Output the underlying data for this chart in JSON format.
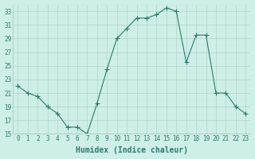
{
  "x": [
    0,
    1,
    2,
    3,
    4,
    5,
    6,
    7,
    8,
    9,
    10,
    11,
    12,
    13,
    14,
    15,
    16,
    17,
    18,
    19,
    20,
    21,
    22,
    23
  ],
  "y": [
    22,
    21,
    20.5,
    19,
    18,
    16,
    16,
    15,
    19.5,
    24.5,
    29,
    30.5,
    32,
    32,
    32.5,
    33.5,
    33,
    25.5,
    29.5,
    29.5,
    21,
    21,
    19,
    18
  ],
  "line_color": "#2d7a6e",
  "marker": "+",
  "bg_color": "#ceeee8",
  "grid_major_color": "#b0d4cc",
  "grid_minor_color": "#c5e8e2",
  "xlabel": "Humidex (Indice chaleur)",
  "ylim": [
    15,
    34
  ],
  "xlim": [
    -0.5,
    23.5
  ],
  "yticks": [
    15,
    17,
    19,
    21,
    23,
    25,
    27,
    29,
    31,
    33
  ],
  "xticks": [
    0,
    1,
    2,
    3,
    4,
    5,
    6,
    7,
    8,
    9,
    10,
    11,
    12,
    13,
    14,
    15,
    16,
    17,
    18,
    19,
    20,
    21,
    22,
    23
  ],
  "tick_color": "#2d7a6e",
  "font_size": 5.5,
  "xlabel_fontsize": 7.0,
  "line_width": 0.8,
  "marker_size": 4,
  "marker_edge_width": 0.8
}
